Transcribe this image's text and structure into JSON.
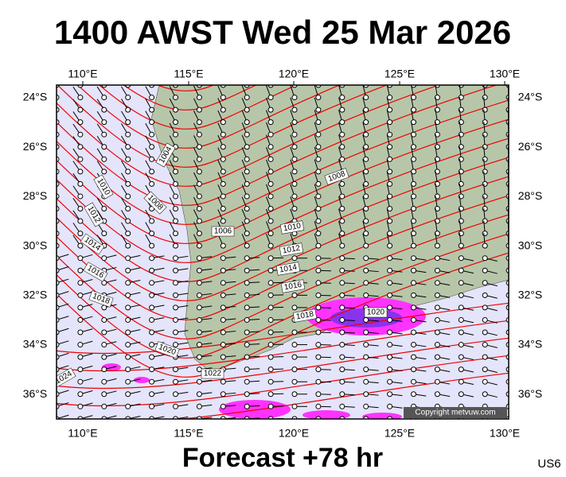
{
  "header": {
    "title": "1400 AWST Wed 25 Mar 2026"
  },
  "map": {
    "lon_labels": [
      "110°E",
      "115°E",
      "120°E",
      "125°E",
      "130°E"
    ],
    "lat_labels": [
      "24°S",
      "26°S",
      "28°S",
      "30°S",
      "32°S",
      "34°S",
      "36°S"
    ],
    "isobar_labels": [
      "1004",
      "1010",
      "1008",
      "1012",
      "1014",
      "1016",
      "1018",
      "1006",
      "1010",
      "1012",
      "1014",
      "1016",
      "1018",
      "1020",
      "1008",
      "1020",
      "1022",
      "1024"
    ],
    "copyright": "Copyright metvuw.com"
  },
  "footer": {
    "forecast": "Forecast +78 hr",
    "code": "US6"
  }
}
